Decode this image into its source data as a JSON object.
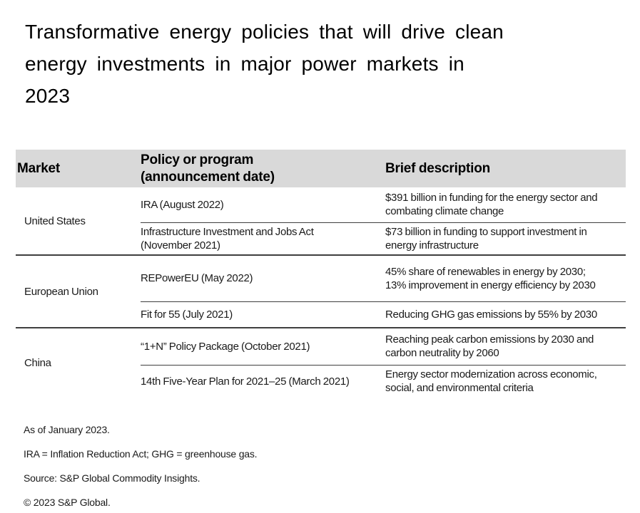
{
  "title": "Transformative energy policies that will drive clean\nenergy investments in major power markets in\n2023",
  "table": {
    "headers": {
      "market": "Market",
      "policy": "Policy or program\n(announcement date)",
      "description": "Brief description"
    },
    "groups": [
      {
        "market": "United States",
        "rows": [
          {
            "policy": "IRA (August 2022)",
            "description": "$391 billion in funding for the energy sector and\ncombating climate change"
          },
          {
            "policy": "Infrastructure Investment and Jobs Act\n(November 2021)",
            "description": "$73 billion in funding to support investment in\nenergy infrastructure"
          }
        ]
      },
      {
        "market": "European Union",
        "rows": [
          {
            "policy": "REPowerEU (May 2022)",
            "description": "45% share of renewables in energy by 2030;\n13% improvement in energy efficiency by 2030"
          },
          {
            "policy": "Fit for 55 (July 2021)",
            "description": "Reducing GHG gas emissions by 55% by 2030"
          }
        ]
      },
      {
        "market": "China",
        "rows": [
          {
            "policy": "“1+N” Policy Package (October 2021)",
            "description": "Reaching peak carbon emissions by 2030 and\ncarbon neutrality by 2060"
          },
          {
            "policy": "14th Five-Year Plan for 2021–25 (March 2021)",
            "description": "Energy sector modernization across economic,\nsocial, and environmental criteria"
          }
        ]
      }
    ]
  },
  "footnotes": [
    "As of January 2023.",
    "IRA = Inflation Reduction Act; GHG = greenhouse gas.",
    "Source: S&P Global Commodity Insights.",
    "© 2023 S&P Global."
  ],
  "colors": {
    "header_bg": "#d9d9d9",
    "rule": "#3f3f3f",
    "text": "#1a1a1a"
  }
}
